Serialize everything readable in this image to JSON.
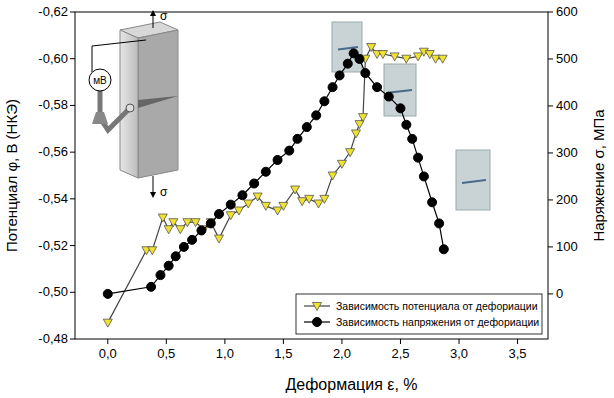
{
  "chart_data": {
    "type": "line",
    "x_label": "Деформация ε, %",
    "y_label": "Потенциал φ, В (НКЭ)",
    "y2_label": "Наряжение σ, МПа",
    "annotations": [
      "σ",
      "σ",
      "мВ"
    ],
    "xlim": [
      -0.28,
      3.76
    ],
    "xticks": [
      {
        "value": 0,
        "label": "0,0"
      },
      {
        "value": 0.5,
        "label": "0,5"
      },
      {
        "value": 1,
        "label": "1,0"
      },
      {
        "value": 1.5,
        "label": "1,5"
      },
      {
        "value": 2,
        "label": "2,0"
      },
      {
        "value": 2.5,
        "label": "2,5"
      },
      {
        "value": 3,
        "label": "3,0"
      },
      {
        "value": 3.5,
        "label": "3,5"
      }
    ],
    "ylim": [
      -0.48,
      -0.62
    ],
    "yticks": [
      {
        "value": -0.48,
        "label": "-0,48"
      },
      {
        "value": -0.5,
        "label": "-0,50"
      },
      {
        "value": -0.52,
        "label": "-0,52"
      },
      {
        "value": -0.54,
        "label": "-0,54"
      },
      {
        "value": -0.56,
        "label": "-0,56"
      },
      {
        "value": -0.58,
        "label": "-0,58"
      },
      {
        "value": -0.6,
        "label": "-0,60"
      },
      {
        "value": -0.62,
        "label": "-0,62"
      }
    ],
    "y2lim": [
      -96,
      600
    ],
    "y2ticks": [
      0,
      100,
      200,
      300,
      400,
      500,
      600
    ],
    "grid": false,
    "legend": "lower right",
    "series": [
      {
        "name": "Зависимость потенциала от дефориации",
        "color": "#f2e230",
        "marker": "triangle-down",
        "axis": "y",
        "x": [
          0,
          0.33,
          0.38,
          0.47,
          0.52,
          0.56,
          0.62,
          0.68,
          0.75,
          0.82,
          0.88,
          0.95,
          1.05,
          1.12,
          1.2,
          1.28,
          1.35,
          1.45,
          1.5,
          1.6,
          1.66,
          1.72,
          1.8,
          1.85,
          1.92,
          2.0,
          2.07,
          2.12,
          2.15,
          2.18,
          2.2,
          2.25,
          2.3,
          2.35,
          2.45,
          2.55,
          2.65,
          2.7,
          2.75,
          2.8,
          2.86
        ],
        "values": [
          -0.487,
          -0.518,
          -0.518,
          -0.532,
          -0.527,
          -0.53,
          -0.527,
          -0.53,
          -0.53,
          -0.527,
          -0.53,
          -0.523,
          -0.533,
          -0.535,
          -0.538,
          -0.541,
          -0.537,
          -0.535,
          -0.537,
          -0.544,
          -0.539,
          -0.54,
          -0.538,
          -0.54,
          -0.55,
          -0.555,
          -0.56,
          -0.568,
          -0.572,
          -0.575,
          -0.6,
          -0.605,
          -0.602,
          -0.602,
          -0.601,
          -0.6,
          -0.601,
          -0.603,
          -0.602,
          -0.6,
          -0.6
        ]
      },
      {
        "name": "Зависимость напряжения от дефориации",
        "color": "#000000",
        "marker": "circle",
        "axis": "y2",
        "x": [
          0,
          0.37,
          0.45,
          0.52,
          0.58,
          0.65,
          0.72,
          0.8,
          0.88,
          0.95,
          1.05,
          1.15,
          1.25,
          1.35,
          1.45,
          1.55,
          1.62,
          1.7,
          1.78,
          1.85,
          1.92,
          1.98,
          2.05,
          2.1,
          2.15,
          2.2,
          2.3,
          2.4,
          2.5,
          2.55,
          2.6,
          2.65,
          2.7,
          2.77,
          2.83,
          2.87
        ],
        "values": [
          0,
          15,
          40,
          60,
          80,
          100,
          115,
          135,
          150,
          170,
          190,
          210,
          235,
          260,
          285,
          305,
          330,
          355,
          380,
          410,
          440,
          465,
          490,
          512,
          500,
          470,
          440,
          420,
          395,
          360,
          330,
          290,
          250,
          195,
          150,
          95
        ]
      }
    ]
  }
}
